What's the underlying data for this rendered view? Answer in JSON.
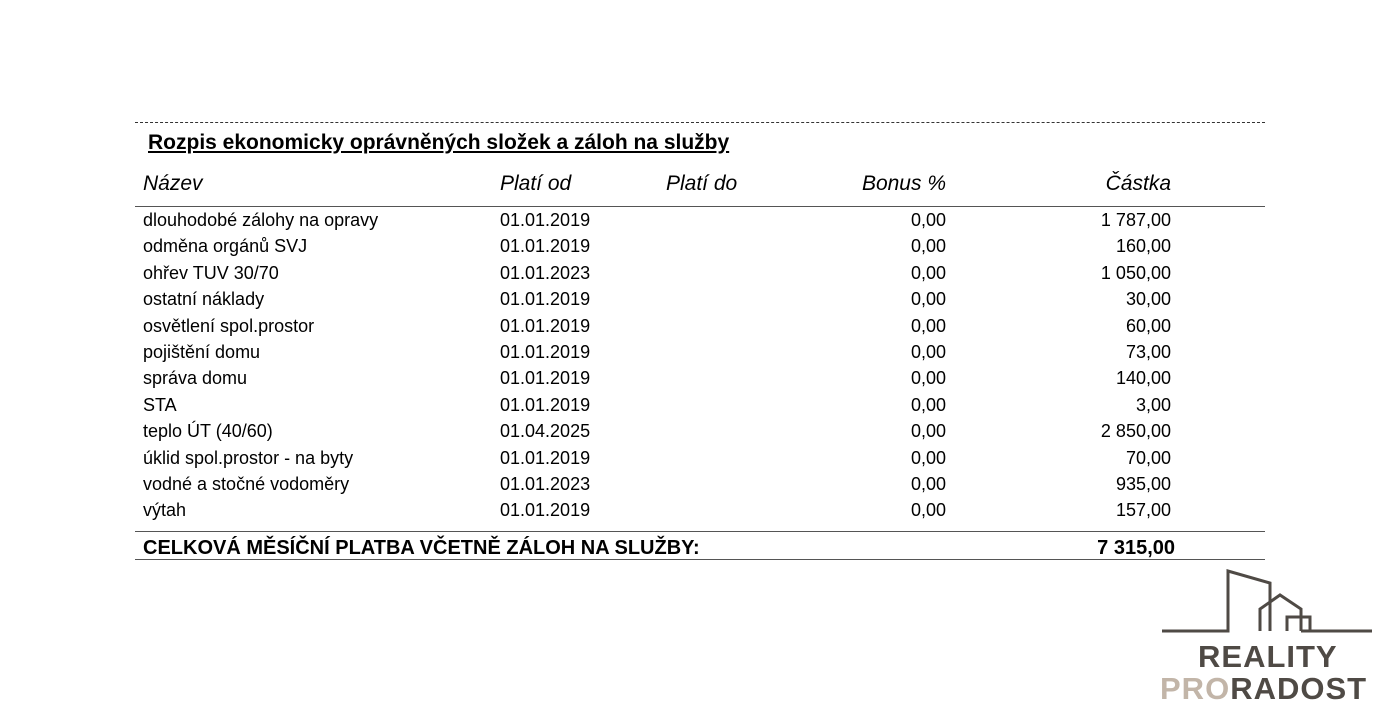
{
  "title": "Rozpis ekonomicky oprávněných složek a záloh na služby",
  "columns": {
    "name": "Název",
    "from": "Platí od",
    "to": "Platí do",
    "bonus": "Bonus %",
    "amount": "Částka"
  },
  "rows": [
    {
      "name": "dlouhodobé zálohy na opravy",
      "from": "01.01.2019",
      "to": "",
      "bonus": "0,00",
      "amount": "1 787,00"
    },
    {
      "name": "odměna orgánů SVJ",
      "from": "01.01.2019",
      "to": "",
      "bonus": "0,00",
      "amount": "160,00"
    },
    {
      "name": "ohřev TUV 30/70",
      "from": "01.01.2023",
      "to": "",
      "bonus": "0,00",
      "amount": "1 050,00"
    },
    {
      "name": "ostatní náklady",
      "from": "01.01.2019",
      "to": "",
      "bonus": "0,00",
      "amount": "30,00"
    },
    {
      "name": "osvětlení spol.prostor",
      "from": "01.01.2019",
      "to": "",
      "bonus": "0,00",
      "amount": "60,00"
    },
    {
      "name": "pojištění domu",
      "from": "01.01.2019",
      "to": "",
      "bonus": "0,00",
      "amount": "73,00"
    },
    {
      "name": "správa domu",
      "from": "01.01.2019",
      "to": "",
      "bonus": "0,00",
      "amount": "140,00"
    },
    {
      "name": "STA",
      "from": "01.01.2019",
      "to": "",
      "bonus": "0,00",
      "amount": "3,00"
    },
    {
      "name": "teplo ÚT (40/60)",
      "from": "01.04.2025",
      "to": "",
      "bonus": "0,00",
      "amount": "2 850,00"
    },
    {
      "name": "úklid spol.prostor - na byty",
      "from": "01.01.2019",
      "to": "",
      "bonus": "0,00",
      "amount": "70,00"
    },
    {
      "name": "vodné a stočné vodoměry",
      "from": "01.01.2023",
      "to": "",
      "bonus": "0,00",
      "amount": "935,00"
    },
    {
      "name": "výtah",
      "from": "01.01.2019",
      "to": "",
      "bonus": "0,00",
      "amount": "157,00"
    }
  ],
  "total": {
    "label": "CELKOVÁ MĚSÍČNÍ PLATBA VČETNĚ ZÁLOH NA SLUŽBY:",
    "amount": "7 315,00"
  },
  "logo": {
    "line1": "REALITY",
    "line2a": "PRO",
    "line2b": "RADOST",
    "colors": {
      "dark": "#4f4a45",
      "light": "#c2b5a8"
    }
  }
}
